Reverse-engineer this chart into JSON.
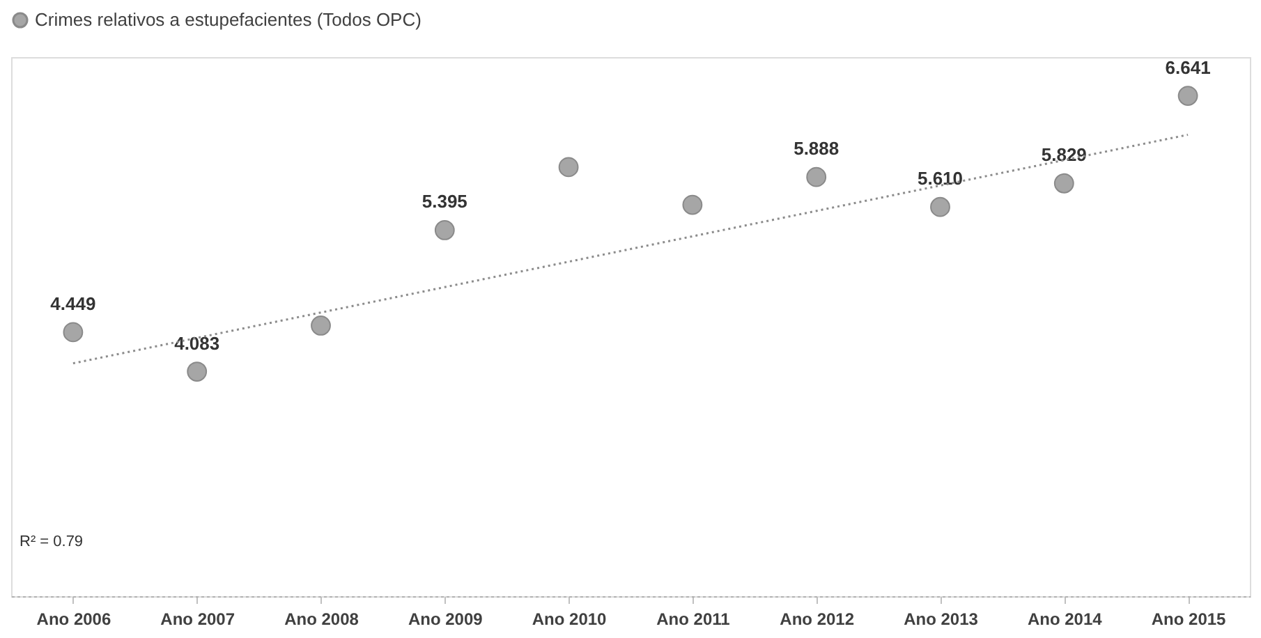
{
  "chart_data": {
    "type": "scatter",
    "categories": [
      "Ano 2006",
      "Ano 2007",
      "Ano 2008",
      "Ano 2009",
      "Ano 2010",
      "Ano 2011",
      "Ano 2012",
      "Ano 2013",
      "Ano 2014",
      "Ano 2015"
    ],
    "series": [
      {
        "name": "Crimes relativos a estupefacientes (Todos OPC)",
        "color": "#a6a6a6",
        "values": [
          4.449,
          4.083,
          4.51,
          5.395,
          5.98,
          5.63,
          5.888,
          5.61,
          5.829,
          6.641
        ],
        "value_labels": [
          "4.449",
          "4.083",
          null,
          "5.395",
          null,
          null,
          "5.888",
          "5.610",
          "5.829",
          "6.641"
        ]
      },
      {
        "type": "line",
        "color": "#8c8c8c",
        "line_style": "dotted",
        "marker": "none",
        "x": [
          "Ano 2006",
          "Ano 2015"
        ],
        "values": [
          4.16,
          6.28
        ]
      }
    ],
    "ylim": [
      2.0,
      7.0
    ],
    "tick_labels": "x",
    "grid": false,
    "legend": "top",
    "marker": "circle",
    "annotations": [
      "R² = 0.79"
    ]
  }
}
